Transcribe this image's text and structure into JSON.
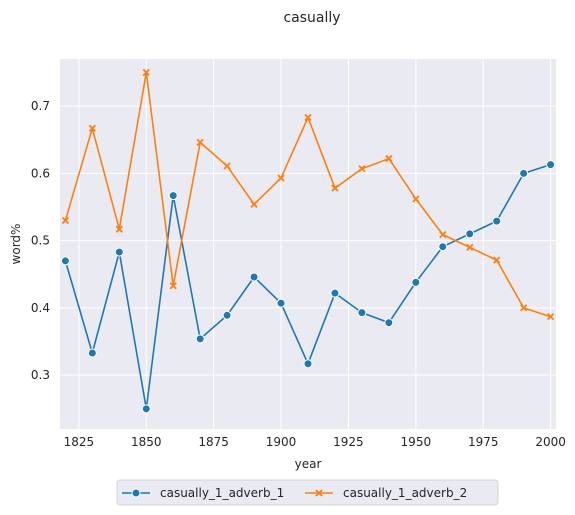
{
  "chart_data": {
    "type": "line",
    "title": "casually",
    "xlabel": "year",
    "ylabel": "word%",
    "xlim": [
      1818,
      2002
    ],
    "ylim": [
      0.22,
      0.77
    ],
    "xticks": [
      1825,
      1850,
      1875,
      1900,
      1925,
      1950,
      1975,
      2000
    ],
    "yticks": [
      0.3,
      0.4,
      0.5,
      0.6,
      0.7
    ],
    "ytick_labels": [
      "0.3",
      "0.4",
      "0.5",
      "0.6",
      "0.7"
    ],
    "grid": true,
    "legend_position": "bottom-center",
    "x": [
      1820,
      1830,
      1840,
      1850,
      1860,
      1870,
      1880,
      1890,
      1900,
      1910,
      1920,
      1930,
      1940,
      1950,
      1960,
      1970,
      1980,
      1990,
      2000
    ],
    "series": [
      {
        "name": "casually_1_adverb_1",
        "color": "#1f77b4",
        "marker": "circle",
        "values": [
          0.47,
          0.333,
          0.483,
          0.25,
          0.567,
          0.354,
          0.389,
          0.446,
          0.407,
          0.317,
          0.422,
          0.393,
          0.378,
          0.438,
          0.491,
          0.51,
          0.529,
          0.6,
          0.613
        ]
      },
      {
        "name": "casually_1_adverb_2",
        "color": "#ff7f0e",
        "marker": "x",
        "values": [
          0.53,
          0.667,
          0.517,
          0.75,
          0.433,
          0.646,
          0.611,
          0.554,
          0.593,
          0.683,
          0.578,
          0.607,
          0.622,
          0.562,
          0.509,
          0.49,
          0.471,
          0.4,
          0.387
        ]
      }
    ]
  }
}
